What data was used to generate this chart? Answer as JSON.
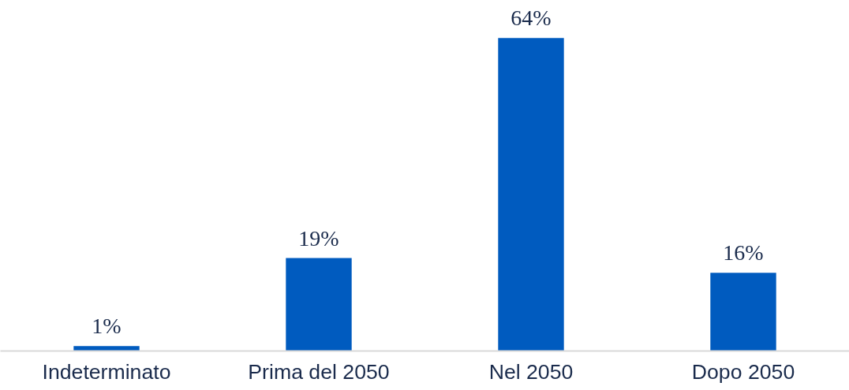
{
  "chart_data": {
    "type": "bar",
    "categories": [
      "Indeterminato",
      "Prima del 2050",
      "Nel 2050",
      "Dopo 2050"
    ],
    "values": [
      1,
      19,
      64,
      16
    ],
    "value_labels": [
      "1%",
      "19%",
      "64%",
      "16%"
    ],
    "color": "#005bbf",
    "grid": false
  }
}
